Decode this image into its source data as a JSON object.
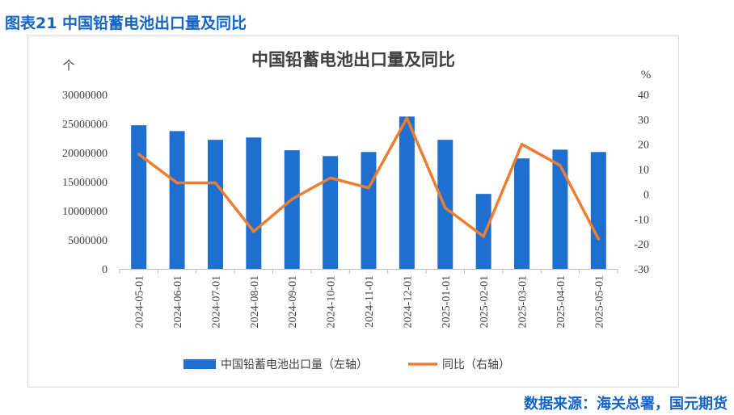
{
  "figure_caption": "图表21 中国铅蓄电池出口量及同比",
  "source": "数据来源：海关总署，国元期货",
  "colors": {
    "bar": "#1f6fd1",
    "line": "#ed7d31",
    "caption": "#1464c8"
  },
  "chart_data": {
    "type": "bar",
    "title": "中国铅蓄电池出口量及同比",
    "ylabel": "个",
    "y2label": "%",
    "categories": [
      "2024-05-01",
      "2024-06-01",
      "2024-07-01",
      "2024-08-01",
      "2024-09-01",
      "2024-10-01",
      "2024-11-01",
      "2024-12-01",
      "2025-01-01",
      "2025-02-01",
      "2025-03-01",
      "2025-04-01",
      "2025-05-01"
    ],
    "ylim": [
      0,
      30000000
    ],
    "yticks": [
      "0",
      "5000000",
      "10000000",
      "15000000",
      "20000000",
      "25000000",
      "30000000"
    ],
    "y2lim": [
      -30,
      40
    ],
    "y2ticks": [
      "-30",
      "-20",
      "-10",
      "0",
      "10",
      "20",
      "30",
      "40"
    ],
    "grid": false,
    "legend_position": "bottom",
    "series": [
      {
        "name": "中国铅蓄电池出口量（左轴）",
        "type": "bar",
        "axis": "left",
        "values": [
          24700000,
          23700000,
          22200000,
          22600000,
          20400000,
          19400000,
          20100000,
          26200000,
          22200000,
          12900000,
          19000000,
          20500000,
          20100000
        ]
      },
      {
        "name": "同比（右轴）",
        "type": "line",
        "axis": "right",
        "values": [
          16,
          4.5,
          4.5,
          -15,
          -2,
          6.5,
          2.5,
          30.5,
          -5.5,
          -17,
          20,
          11.5,
          -18
        ]
      }
    ]
  }
}
